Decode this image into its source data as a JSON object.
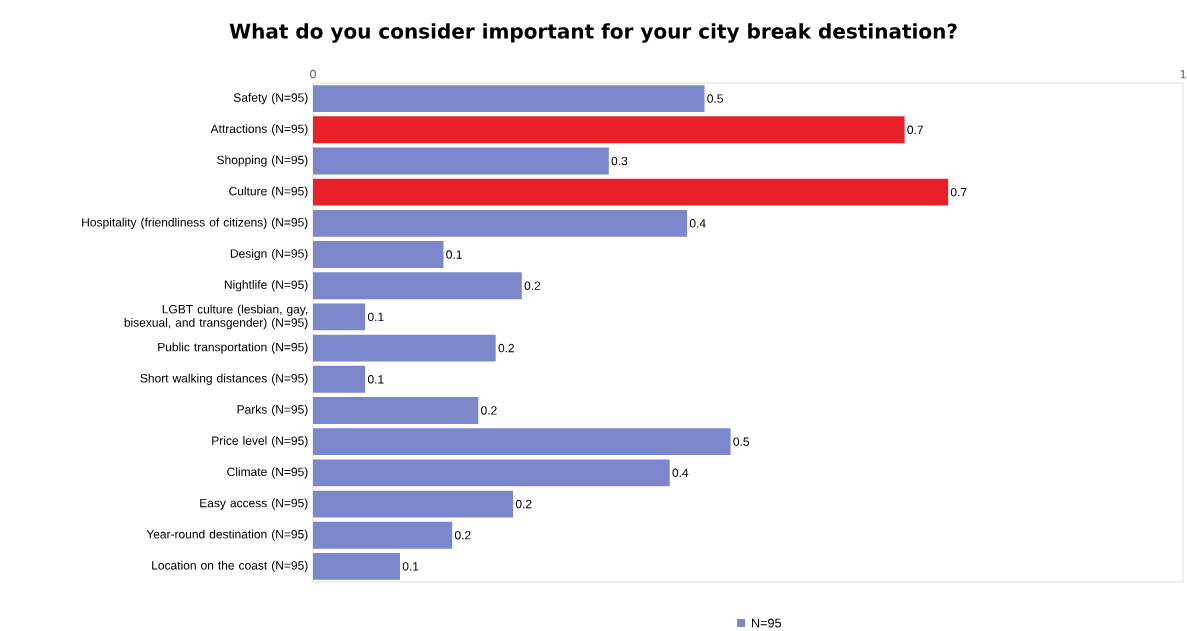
{
  "chart_data": {
    "type": "bar",
    "orientation": "horizontal",
    "title": "What do you consider important for your city break destination?",
    "categories": [
      "Safety (N=95)",
      "Attractions (N=95)",
      "Shopping (N=95)",
      "Culture (N=95)",
      "Hospitality (friendliness of citizens) (N=95)",
      "Design (N=95)",
      "Nightlife (N=95)",
      "LGBT culture (lesbian, gay, bisexual, and transgender) (N=95)",
      "Public transportation (N=95)",
      "Short walking distances (N=95)",
      "Parks (N=95)",
      "Price level (N=95)",
      "Climate (N=95)",
      "Easy access (N=95)",
      "Year-round destination (N=95)",
      "Location on the coast (N=95)"
    ],
    "series": [
      {
        "name": "N=95",
        "color": "#7b86cb",
        "colors": [
          "#7b86cb",
          "#e8202a",
          "#7b86cb",
          "#e8202a",
          "#7b86cb",
          "#7b86cb",
          "#7b86cb",
          "#7b86cb",
          "#7b86cb",
          "#7b86cb",
          "#7b86cb",
          "#7b86cb",
          "#7b86cb",
          "#7b86cb",
          "#7b86cb",
          "#7b86cb"
        ],
        "values": [
          0.45,
          0.68,
          0.34,
          0.73,
          0.43,
          0.15,
          0.24,
          0.06,
          0.21,
          0.06,
          0.19,
          0.48,
          0.41,
          0.23,
          0.16,
          0.1
        ],
        "value_labels": [
          "0.5",
          "0.7",
          "0.3",
          "0.7",
          "0.4",
          "0.1",
          "0.2",
          "0.1",
          "0.2",
          "0.1",
          "0.2",
          "0.5",
          "0.4",
          "0.2",
          "0.2",
          "0.1"
        ]
      }
    ],
    "xlim": [
      0,
      1
    ],
    "xticks": [
      0,
      1
    ],
    "legend": "bottom"
  }
}
